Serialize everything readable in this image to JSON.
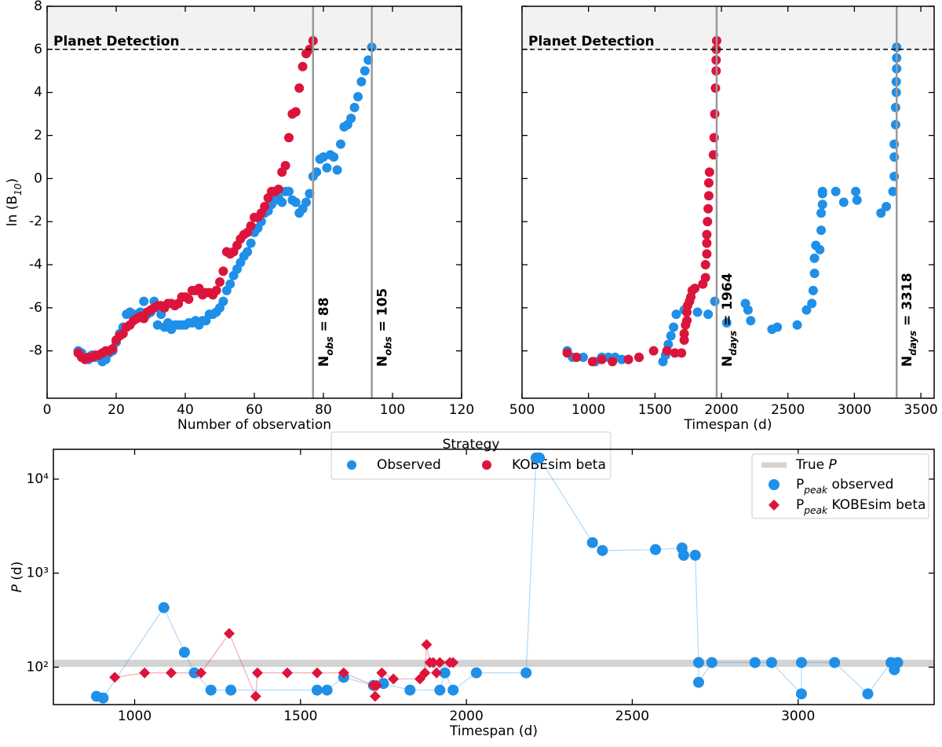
{
  "chart_data": [
    {
      "type": "scatter",
      "xlabel": "Number of observation",
      "ylabel": [
        {
          "text": "ln (B"
        },
        {
          "sub": "10"
        },
        {
          "text": ")"
        }
      ],
      "xlim": [
        0,
        120
      ],
      "xticks": [
        0,
        20,
        40,
        60,
        80,
        100,
        120
      ],
      "ylim": [
        -10.2,
        8
      ],
      "yticks": [
        -8,
        -6,
        -4,
        -2,
        0,
        2,
        4,
        6,
        8
      ],
      "show_ytick_labels": true,
      "threshold": 6,
      "threshold_label": "Planet Detection",
      "shade_above_threshold": true,
      "vlines": [
        {
          "x": 77,
          "label": [
            {
              "text": "N"
            },
            {
              "sub": "obs"
            },
            {
              "text": " = 88"
            }
          ]
        },
        {
          "x": 94,
          "label": [
            {
              "text": "N"
            },
            {
              "sub": "obs"
            },
            {
              "text": " = 105"
            }
          ]
        }
      ],
      "legend": {
        "title": "Strategy",
        "position": "below"
      },
      "series": [
        {
          "name": "Observed",
          "color": "#1f8fe8",
          "marker": "circle",
          "x": [
            9,
            10,
            11,
            12,
            13,
            14,
            15,
            16,
            17,
            18,
            19,
            20,
            21,
            22,
            23,
            24,
            25,
            26,
            27,
            28,
            29,
            30,
            31,
            32,
            33,
            34,
            35,
            36,
            37,
            38,
            39,
            40,
            41,
            42,
            43,
            44,
            45,
            46,
            47,
            48,
            49,
            50,
            51,
            52,
            53,
            54,
            55,
            56,
            57,
            58,
            59,
            60,
            61,
            62,
            63,
            64,
            65,
            66,
            67,
            68,
            69,
            70,
            71,
            72,
            73,
            74,
            75,
            76,
            77,
            78,
            79,
            80,
            81,
            82,
            83,
            84,
            85,
            86,
            87,
            88,
            89,
            90,
            91,
            92,
            93,
            94
          ],
          "values": [
            -8,
            -8.1,
            -8.3,
            -8.4,
            -8.2,
            -8.3,
            -8.3,
            -8.5,
            -8.4,
            -8.1,
            -8,
            -7.6,
            -7.2,
            -6.9,
            -6.3,
            -6.2,
            -6.3,
            -6.3,
            -6.2,
            -5.7,
            -6.3,
            -6.2,
            -5.7,
            -6.8,
            -6.3,
            -6.9,
            -6.7,
            -7,
            -6.8,
            -6.8,
            -6.8,
            -6.8,
            -6.7,
            -6.7,
            -6.6,
            -6.8,
            -6.6,
            -6.6,
            -6.3,
            -6.3,
            -6.2,
            -6,
            -5.7,
            -5.2,
            -4.9,
            -4.5,
            -4.2,
            -3.9,
            -3.6,
            -3.4,
            -3,
            -2.5,
            -2.3,
            -2,
            -1.6,
            -1.5,
            -1.2,
            -1,
            -0.9,
            -1.1,
            -0.6,
            -0.6,
            -1,
            -1.1,
            -1.6,
            -1.4,
            -1.1,
            -0.7,
            0.1,
            0.3,
            0.9,
            1,
            0.5,
            1.1,
            1,
            0.4,
            1.6,
            2.4,
            2.5,
            2.8,
            3.3,
            3.8,
            4.5,
            5,
            5.5,
            6.1
          ]
        },
        {
          "name": "KOBEsim beta",
          "color": "#dc143c",
          "marker": "circle",
          "x": [
            9,
            10,
            11,
            12,
            13,
            14,
            15,
            16,
            17,
            18,
            19,
            20,
            21,
            22,
            23,
            24,
            25,
            26,
            27,
            28,
            29,
            30,
            31,
            32,
            33,
            34,
            35,
            36,
            37,
            38,
            39,
            40,
            41,
            42,
            43,
            44,
            45,
            46,
            47,
            48,
            49,
            50,
            51,
            52,
            53,
            54,
            55,
            56,
            57,
            58,
            59,
            60,
            61,
            62,
            63,
            64,
            65,
            66,
            67,
            68,
            69,
            70,
            71,
            72,
            73,
            74,
            75,
            76,
            77
          ],
          "values": [
            -8.1,
            -8.3,
            -8.4,
            -8.3,
            -8.3,
            -8.2,
            -8.2,
            -8.1,
            -8,
            -8,
            -7.9,
            -7.5,
            -7.3,
            -7.2,
            -6.9,
            -6.8,
            -6.6,
            -6.5,
            -6.4,
            -6.5,
            -6.2,
            -6.1,
            -6,
            -5.9,
            -5.9,
            -6,
            -5.8,
            -5.8,
            -5.9,
            -5.8,
            -5.5,
            -5.5,
            -5.6,
            -5.2,
            -5.2,
            -5.1,
            -5.4,
            -5.3,
            -5.3,
            -5.4,
            -5.2,
            -4.8,
            -4.3,
            -3.4,
            -3.5,
            -3.4,
            -3.1,
            -2.8,
            -2.6,
            -2.5,
            -2.2,
            -1.8,
            -1.8,
            -1.6,
            -1.3,
            -0.9,
            -0.6,
            -0.6,
            -0.5,
            0.3,
            0.6,
            1.9,
            3,
            3.1,
            4.2,
            5.2,
            5.8,
            6,
            6.4
          ]
        }
      ]
    },
    {
      "type": "scatter",
      "xlabel": "Timespan (d)",
      "xlim": [
        500,
        3600
      ],
      "xticks": [
        500,
        1000,
        1500,
        2000,
        2500,
        3000,
        3500
      ],
      "ylim": [
        -10.2,
        8
      ],
      "yticks": [
        -8,
        -6,
        -4,
        -2,
        0,
        2,
        4,
        6,
        8
      ],
      "show_ytick_labels": false,
      "threshold": 6,
      "threshold_label": "Planet Detection",
      "shade_above_threshold": true,
      "vlines": [
        {
          "x": 1964,
          "label": [
            {
              "text": "N"
            },
            {
              "sub": "days"
            },
            {
              "text": " = 1964"
            }
          ]
        },
        {
          "x": 3318,
          "label": [
            {
              "text": "N"
            },
            {
              "sub": "days"
            },
            {
              "text": " = 3318"
            }
          ]
        }
      ],
      "series": [
        {
          "color": "#1f8fe8",
          "marker": "circle",
          "x": [
            840,
            880,
            960,
            1050,
            1100,
            1150,
            1200,
            1250,
            1300,
            1380,
            1560,
            1580,
            1600,
            1620,
            1640,
            1660,
            1720,
            1820,
            1900,
            1950,
            2040,
            2180,
            2200,
            2220,
            2380,
            2420,
            2570,
            2640,
            2680,
            2690,
            2700,
            2700,
            2710,
            2740,
            2750,
            2750,
            2760,
            2760,
            2760,
            2860,
            2920,
            3010,
            3020,
            3200,
            3240,
            3290,
            3300,
            3300,
            3300,
            3310,
            3310,
            3315,
            3315,
            3318,
            3318,
            3318
          ],
          "values": [
            -8,
            -8.3,
            -8.3,
            -8.5,
            -8.3,
            -8.3,
            -8.3,
            -8.4,
            -8.4,
            -8.3,
            -8.5,
            -8.2,
            -7.7,
            -7.3,
            -6.9,
            -6.3,
            -6.1,
            -6.2,
            -6.3,
            -5.7,
            -6.7,
            -5.8,
            -6.1,
            -6.6,
            -7,
            -6.9,
            -6.8,
            -6.1,
            -5.8,
            -5.2,
            -4.4,
            -3.7,
            -3.1,
            -3.3,
            -2.4,
            -1.6,
            -1.2,
            -0.7,
            -0.6,
            -0.6,
            -1.1,
            -0.6,
            -1,
            -1.6,
            -1.3,
            -0.6,
            0.1,
            1,
            1.6,
            2.5,
            3.3,
            4,
            4.5,
            5.1,
            5.6,
            6.1
          ]
        },
        {
          "color": "#dc143c",
          "marker": "circle",
          "x": [
            840,
            910,
            1030,
            1100,
            1180,
            1300,
            1380,
            1490,
            1590,
            1650,
            1700,
            1720,
            1720,
            1730,
            1740,
            1740,
            1745,
            1760,
            1770,
            1780,
            1800,
            1860,
            1880,
            1880,
            1890,
            1890,
            1890,
            1895,
            1900,
            1905,
            1905,
            1910,
            1940,
            1945,
            1950,
            1955,
            1960,
            1960,
            1962,
            1964
          ],
          "values": [
            -8.1,
            -8.3,
            -8.5,
            -8.4,
            -8.5,
            -8.4,
            -8.3,
            -8,
            -8,
            -8.1,
            -8.1,
            -7.5,
            -7.2,
            -6.8,
            -6.6,
            -6.2,
            -5.9,
            -5.7,
            -5.5,
            -5.2,
            -5.1,
            -4.9,
            -4.6,
            -4,
            -3.5,
            -3,
            -2.6,
            -2,
            -1.4,
            -0.8,
            -0.2,
            0.3,
            1.1,
            1.9,
            3,
            4.2,
            5,
            5.5,
            6,
            6.4
          ]
        }
      ]
    },
    {
      "type": "scatter",
      "connect": true,
      "ylog": true,
      "xlabel": "Timespan (d)",
      "ylabel": [
        {
          "ital": "P"
        },
        {
          "text": " (d)"
        }
      ],
      "xlim": [
        755,
        3410
      ],
      "xticks": [
        1000,
        1500,
        2000,
        2500,
        3000,
        3500
      ],
      "ylim": [
        40,
        20750
      ],
      "yticks": [
        {
          "value": 100,
          "label": "10²"
        },
        {
          "value": 1000,
          "label": "10³"
        },
        {
          "value": 10000,
          "label": "10⁴"
        }
      ],
      "show_ytick_labels": true,
      "hline": {
        "value": 110,
        "color": "#d3d3d3",
        "name": [
          {
            "text": "True "
          },
          {
            "ital": "P"
          }
        ]
      },
      "legend": {
        "position": "upper right"
      },
      "series": [
        {
          "name": [
            {
              "text": "P"
            },
            {
              "sub": "peak"
            },
            {
              "text": " observed"
            }
          ],
          "color": "#1f8fe8",
          "marker": "circle",
          "x": [
            885,
            905,
            1088,
            1150,
            1180,
            1230,
            1290,
            1550,
            1580,
            1630,
            1720,
            1750,
            1830,
            1920,
            1935,
            1960,
            2030,
            2180,
            2210,
            2220,
            2380,
            2410,
            2570,
            2650,
            2655,
            2690,
            2700,
            2700,
            2740,
            2870,
            2920,
            3010,
            3010,
            3110,
            3210,
            3280,
            3290,
            3300
          ],
          "values": [
            49,
            47,
            430,
            144,
            87,
            57,
            57,
            57,
            57,
            78,
            64,
            67,
            57,
            57,
            87,
            57,
            87,
            87,
            16800,
            16800,
            2110,
            1740,
            1780,
            1850,
            1550,
            1550,
            112,
            69,
            112,
            112,
            112,
            52,
            112,
            112,
            52,
            112,
            94,
            112
          ]
        },
        {
          "name": [
            {
              "text": "P"
            },
            {
              "sub": "peak"
            },
            {
              "text": " KOBEsim beta"
            }
          ],
          "color": "#dc143c",
          "marker": "diamond",
          "x": [
            940,
            1030,
            1110,
            1200,
            1285,
            1365,
            1370,
            1460,
            1550,
            1630,
            1720,
            1725,
            1730,
            1745,
            1780,
            1860,
            1875,
            1880,
            1890,
            1900,
            1910,
            1920,
            1950,
            1960
          ],
          "values": [
            78,
            87,
            87,
            87,
            228,
            49,
            87,
            87,
            87,
            87,
            64,
            49,
            64,
            87,
            75,
            75,
            87,
            174,
            112,
            112,
            87,
            112,
            112,
            112
          ]
        }
      ]
    }
  ]
}
